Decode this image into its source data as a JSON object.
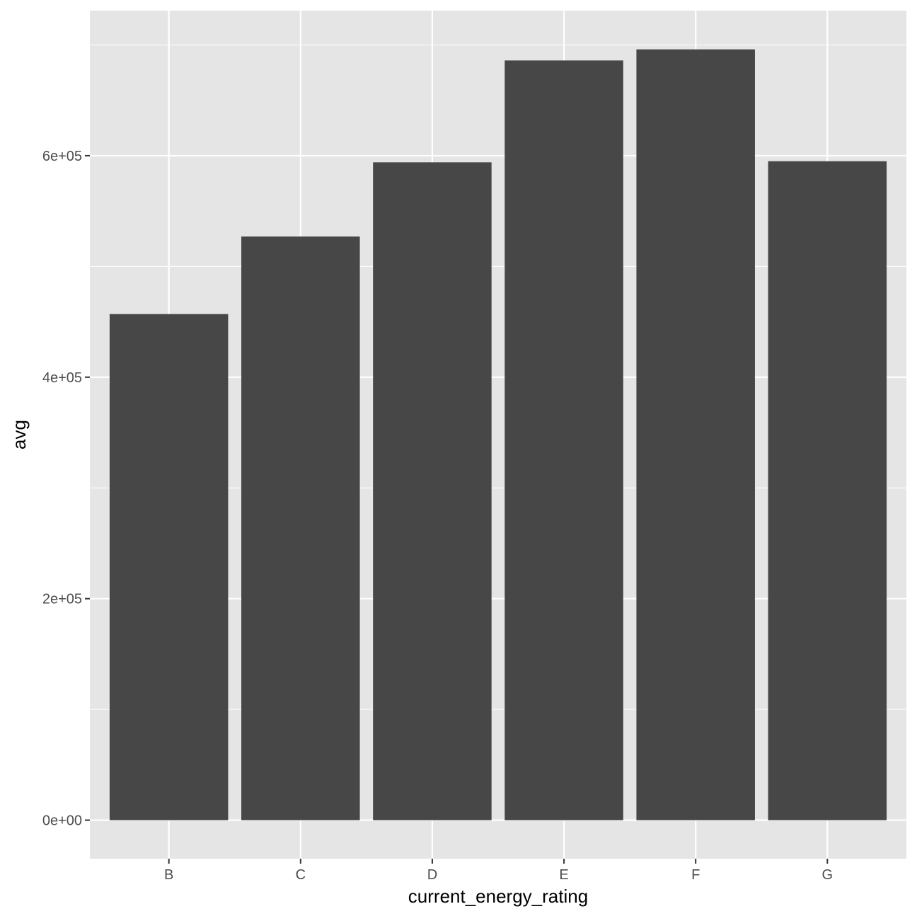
{
  "chart_data": {
    "type": "bar",
    "title": "",
    "xlabel": "current_energy_rating",
    "ylabel": "avg",
    "categories": [
      "B",
      "C",
      "D",
      "E",
      "F",
      "G"
    ],
    "values": [
      457000,
      527000,
      594000,
      686000,
      696000,
      595000
    ],
    "ylim": [
      -34800,
      731000
    ],
    "y_ticks": [
      0,
      200000,
      400000,
      600000
    ],
    "y_tick_labels": [
      "0e+00",
      "2e+05",
      "4e+05",
      "6e+05"
    ],
    "grid": true,
    "legend": "none",
    "colors": {
      "panel_background": "#e5e5e5",
      "grid": "#ffffff",
      "bar_fill": "#474747",
      "tick_text": "#4d4d4d",
      "axis_title": "#000000"
    }
  }
}
